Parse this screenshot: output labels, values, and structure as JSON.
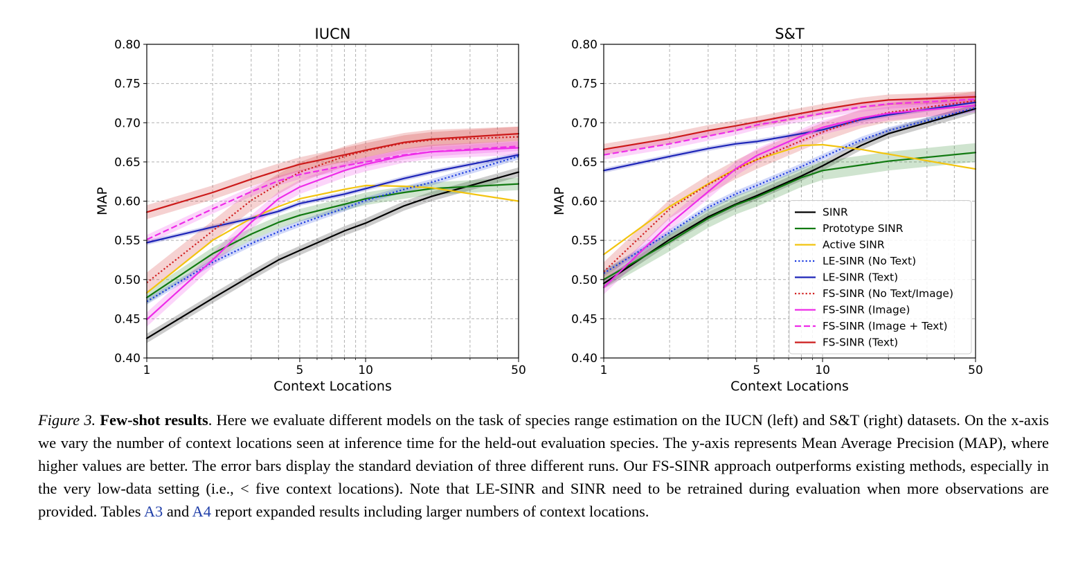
{
  "chart_data": [
    {
      "type": "line",
      "title": "IUCN",
      "xlabel": "Context Locations",
      "ylabel": "MAP",
      "xscale": "log",
      "xlim": [
        1,
        50
      ],
      "ylim": [
        0.4,
        0.8
      ],
      "xticks": [
        1,
        5,
        10,
        50
      ],
      "yticks": [
        0.4,
        0.45,
        0.5,
        0.55,
        0.6,
        0.65,
        0.7,
        0.75,
        0.8
      ],
      "grid": true,
      "legend": null,
      "x": [
        1,
        2,
        3,
        4,
        5,
        8,
        10,
        15,
        20,
        50
      ],
      "series": [
        {
          "name": "SINR",
          "style": "solid",
          "color": "#000000",
          "band": 0.006,
          "values": [
            0.425,
            0.476,
            0.505,
            0.525,
            0.537,
            0.562,
            0.572,
            0.594,
            0.606,
            0.637
          ]
        },
        {
          "name": "Prototype SINR",
          "style": "solid",
          "color": "#117a11",
          "band": 0.008,
          "values": [
            0.477,
            0.533,
            0.558,
            0.573,
            0.582,
            0.596,
            0.603,
            0.611,
            0.616,
            0.622
          ]
        },
        {
          "name": "Active SINR",
          "style": "solid",
          "color": "#f2c40f",
          "band": 0.0,
          "values": [
            0.483,
            0.55,
            0.578,
            0.593,
            0.603,
            0.615,
            0.62,
            0.619,
            0.617,
            0.6
          ]
        },
        {
          "name": "LE-SINR (No Text)",
          "style": "dotted",
          "color": "#1a3ae0",
          "band": 0.004,
          "values": [
            0.472,
            0.522,
            0.546,
            0.561,
            0.571,
            0.591,
            0.601,
            0.615,
            0.624,
            0.657
          ]
        },
        {
          "name": "LE-SINR (Text)",
          "style": "solid",
          "color": "#1c24b8",
          "band": 0.003,
          "values": [
            0.547,
            0.567,
            0.578,
            0.587,
            0.597,
            0.609,
            0.616,
            0.629,
            0.637,
            0.659
          ]
        },
        {
          "name": "FS-SINR (No Text/Image)",
          "style": "dotted",
          "color": "#d11f1f",
          "band": 0.013,
          "values": [
            0.496,
            0.562,
            0.601,
            0.622,
            0.637,
            0.657,
            0.664,
            0.674,
            0.678,
            0.682
          ]
        },
        {
          "name": "FS-SINR (Image)",
          "style": "solid",
          "color": "#ee2be8",
          "band": 0.009,
          "values": [
            0.449,
            0.525,
            0.573,
            0.603,
            0.618,
            0.639,
            0.647,
            0.658,
            0.663,
            0.668
          ]
        },
        {
          "name": "FS-SINR (Image + Text)",
          "style": "dashed",
          "color": "#ee2be8",
          "band": 0.006,
          "values": [
            0.551,
            0.59,
            0.612,
            0.626,
            0.634,
            0.645,
            0.65,
            0.659,
            0.663,
            0.67
          ]
        },
        {
          "name": "FS-SINR (Text)",
          "style": "solid",
          "color": "#cc1a1a",
          "band": 0.009,
          "values": [
            0.586,
            0.611,
            0.628,
            0.639,
            0.647,
            0.659,
            0.665,
            0.675,
            0.679,
            0.686
          ]
        }
      ]
    },
    {
      "type": "line",
      "title": "S&T",
      "xlabel": "Context Locations",
      "ylabel": "MAP",
      "xscale": "log",
      "xlim": [
        1,
        50
      ],
      "ylim": [
        0.4,
        0.8
      ],
      "xticks": [
        1,
        5,
        10,
        50
      ],
      "yticks": [
        0.4,
        0.45,
        0.5,
        0.55,
        0.6,
        0.65,
        0.7,
        0.75,
        0.8
      ],
      "grid": true,
      "legend": "lower-right",
      "x": [
        1,
        2,
        3,
        4,
        5,
        8,
        10,
        15,
        20,
        50
      ],
      "series": [
        {
          "name": "SINR",
          "style": "solid",
          "color": "#000000",
          "band": 0.006,
          "values": [
            0.495,
            0.551,
            0.58,
            0.596,
            0.607,
            0.632,
            0.645,
            0.671,
            0.686,
            0.718
          ]
        },
        {
          "name": "Prototype SINR",
          "style": "solid",
          "color": "#117a11",
          "band": 0.012,
          "values": [
            0.5,
            0.548,
            0.578,
            0.595,
            0.605,
            0.63,
            0.639,
            0.646,
            0.651,
            0.662
          ]
        },
        {
          "name": "Active SINR",
          "style": "solid",
          "color": "#f2c40f",
          "band": 0.0,
          "values": [
            0.532,
            0.593,
            0.622,
            0.641,
            0.653,
            0.671,
            0.672,
            0.666,
            0.66,
            0.641
          ]
        },
        {
          "name": "LE-SINR (No Text)",
          "style": "dotted",
          "color": "#1a3ae0",
          "band": 0.004,
          "values": [
            0.508,
            0.56,
            0.592,
            0.609,
            0.62,
            0.644,
            0.656,
            0.678,
            0.69,
            0.719
          ]
        },
        {
          "name": "LE-SINR (Text)",
          "style": "solid",
          "color": "#1c24b8",
          "band": 0.003,
          "values": [
            0.639,
            0.657,
            0.667,
            0.673,
            0.676,
            0.686,
            0.691,
            0.704,
            0.71,
            0.726
          ]
        },
        {
          "name": "FS-SINR (No Text/Image)",
          "style": "dotted",
          "color": "#d11f1f",
          "band": 0.012,
          "values": [
            0.51,
            0.59,
            0.621,
            0.64,
            0.653,
            0.677,
            0.688,
            0.705,
            0.713,
            0.728
          ]
        },
        {
          "name": "FS-SINR (Image)",
          "style": "solid",
          "color": "#ee2be8",
          "band": 0.009,
          "values": [
            0.49,
            0.571,
            0.612,
            0.641,
            0.658,
            0.683,
            0.694,
            0.706,
            0.712,
            0.722
          ]
        },
        {
          "name": "FS-SINR (Image + Text)",
          "style": "dashed",
          "color": "#ee2be8",
          "band": 0.006,
          "values": [
            0.659,
            0.673,
            0.683,
            0.69,
            0.697,
            0.707,
            0.712,
            0.72,
            0.724,
            0.73
          ]
        },
        {
          "name": "FS-SINR (Text)",
          "style": "solid",
          "color": "#cc1a1a",
          "band": 0.007,
          "values": [
            0.666,
            0.68,
            0.69,
            0.696,
            0.701,
            0.712,
            0.717,
            0.725,
            0.729,
            0.733
          ]
        }
      ]
    }
  ],
  "caption": {
    "label": "Figure 3.",
    "lead": "Few-shot results",
    "text_1": ". Here we evaluate different models on the task of species range estimation on the IUCN (left) and S&T (right) datasets. On the x-axis we vary the number of context locations seen at inference time for the held-out evaluation species. The y-axis represents Mean Average Precision (MAP), where higher values are better. The error bars display the standard deviation of three different runs. Our FS-SINR approach outperforms existing methods, especially in the very low-data setting (i.e., < five context locations). Note that LE-SINR and SINR need to be retrained during evaluation when more observations are provided. Tables ",
    "ref_1": "A3",
    "text_2": " and ",
    "ref_2": "A4",
    "text_3": " report expanded results including larger numbers of context locations."
  }
}
